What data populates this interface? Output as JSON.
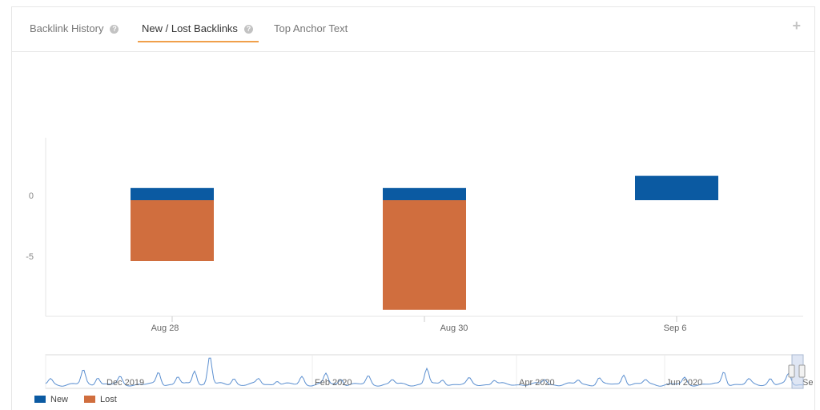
{
  "tabs": [
    {
      "label": "Backlink History",
      "help": "?"
    },
    {
      "label": "New / Lost Backlinks",
      "help": "?"
    },
    {
      "label": "Top Anchor Text"
    }
  ],
  "add_button": "+",
  "colors": {
    "new": "#0b5aa2",
    "lost": "#d06e3e",
    "nav_line": "#5b8fd0",
    "accent": "#f0a04b"
  },
  "chart_data": {
    "type": "bar",
    "stacked": true,
    "categories": [
      "Aug 28",
      "Aug 30",
      "Sep 6"
    ],
    "series": [
      {
        "name": "New",
        "values": [
          1,
          1,
          2
        ]
      },
      {
        "name": "Lost",
        "values": [
          -5,
          -9,
          0
        ]
      }
    ],
    "yticks": [
      0,
      -5
    ],
    "ylim": [
      -9.5,
      5
    ],
    "grid": false,
    "legend": "bottom-left",
    "navigator": {
      "labels": [
        "Dec 2019",
        "Feb 2020",
        "Apr 2020",
        "Jun 2020",
        "Se"
      ]
    }
  }
}
